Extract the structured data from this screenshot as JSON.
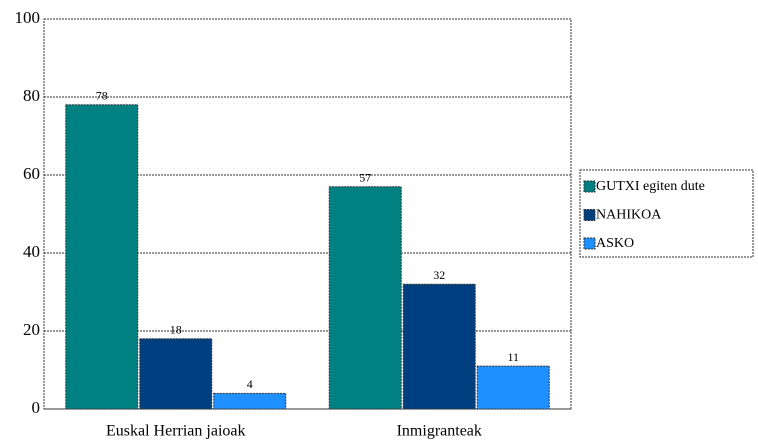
{
  "chart_data": {
    "type": "bar",
    "categories": [
      "Euskal Herrian jaioak",
      "Inmigranteak"
    ],
    "series": [
      {
        "name": "GUTXI egiten dute",
        "color": "#008080",
        "values": [
          78,
          57
        ]
      },
      {
        "name": "NAHIKOA",
        "color": "#003f7f",
        "values": [
          18,
          32
        ]
      },
      {
        "name": "ASKO",
        "color": "#1e90ff",
        "values": [
          4,
          11
        ]
      }
    ],
    "ylim": [
      0,
      100
    ],
    "yticks": [
      0,
      20,
      40,
      60,
      80,
      100
    ],
    "grid": true,
    "legend": "right"
  }
}
